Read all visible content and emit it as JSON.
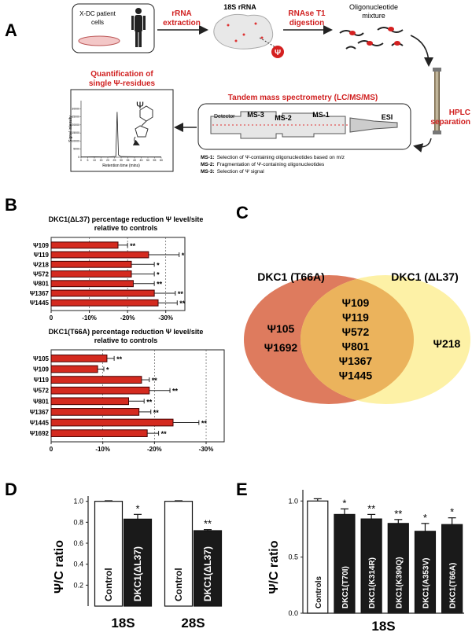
{
  "panel_labels": [
    "A",
    "B",
    "C",
    "D",
    "E"
  ],
  "workflow": {
    "patient_cells": [
      "X-DC patient",
      "cells"
    ],
    "step1": [
      "rRNA",
      "extraction"
    ],
    "rrna_label": "18S rRNA",
    "psi_marker": "Ψ",
    "step2": [
      "RNAse T1",
      "digestion"
    ],
    "oligo_label": [
      "Oligonucleotide",
      "mixture"
    ],
    "step3": [
      "HPLC",
      "separation"
    ],
    "ms_title": "Tandem mass spectrometry (LC/MS/MS)",
    "ms_parts": [
      "Detector",
      "MS-3",
      "MS-2",
      "MS-1",
      "ESI"
    ],
    "quant_title": [
      "Quantification of",
      "single Ψ-residues"
    ],
    "notes": [
      {
        "label": "MS-1:",
        "text": "Selection of Ψ-containing oligonucleotides based on m/z"
      },
      {
        "label": "MS-2:",
        "text": "Fragmentation of Ψ-containing oligonucleotides"
      },
      {
        "label": "MS-3:",
        "text": "Selection of Ψ signal"
      }
    ]
  },
  "venn": {
    "sets": [
      {
        "name": "DKC1 (T66A)",
        "color": "#de7b5e"
      },
      {
        "name": "DKC1 (ΔL37)",
        "color": "#fdf1a6"
      }
    ],
    "overlap_color": "#ebb35c",
    "left_only": [
      "Ψ105",
      "Ψ1692"
    ],
    "both": [
      "Ψ109",
      "Ψ119",
      "Ψ572",
      "Ψ801",
      "Ψ1367",
      "Ψ1445"
    ],
    "right_only": [
      "Ψ218"
    ]
  },
  "chart_data": [
    {
      "type": "hbar",
      "title": [
        "DKC1(ΔL37) percentage reduction Ψ level/site",
        "relative to controls"
      ],
      "categories": [
        "Ψ109",
        "Ψ119",
        "Ψ218",
        "Ψ572",
        "Ψ801",
        "Ψ1367",
        "Ψ1445"
      ],
      "values": [
        -17.5,
        -25.5,
        -21,
        -21,
        -21.5,
        -27,
        -28
      ],
      "errors": [
        2.5,
        8,
        6,
        6,
        5.5,
        5.5,
        5
      ],
      "annotations": [
        "**",
        "*",
        "*",
        "*",
        "**",
        "**",
        "**"
      ],
      "color": "#d42a1f",
      "xlim": [
        0,
        -35
      ],
      "xticks": [
        0,
        {
          "value": -10,
          "label": "-10%"
        },
        {
          "value": -20,
          "label": "-20%"
        },
        {
          "value": -30,
          "label": "-30%"
        }
      ],
      "grid": true
    },
    {
      "type": "hbar",
      "title": [
        "DKC1(T66A) percentage reduction Ψ level/site",
        "relative to controls"
      ],
      "categories": [
        "Ψ105",
        "Ψ109",
        "Ψ119",
        "Ψ572",
        "Ψ801",
        "Ψ1367",
        "Ψ1445",
        "Ψ1692"
      ],
      "values": [
        -10.8,
        -9,
        -17.5,
        -19,
        -15,
        -17,
        -23.6,
        -18.6
      ],
      "errors": [
        1.4,
        1.2,
        1.5,
        4,
        3,
        2.3,
        5,
        2.2
      ],
      "annotations": [
        "**",
        "*",
        "**",
        "**",
        "**",
        "**",
        "**",
        "**"
      ],
      "color": "#d42a1f",
      "xlim": [
        0,
        -33.5
      ],
      "xticks": [
        0,
        {
          "value": -10,
          "label": "-10%"
        },
        {
          "value": -20,
          "label": "-20%"
        },
        {
          "value": -30,
          "label": "-30%"
        }
      ],
      "grid": true
    },
    {
      "type": "bar",
      "y_axis_label": "Ψ/C ratio",
      "categories": [
        "18S",
        "28S"
      ],
      "series": [
        {
          "name": "Control",
          "color": "#ffffff",
          "values": [
            1.0,
            1.0
          ],
          "errors": [
            0.005,
            0.005
          ],
          "annotations": [
            null,
            null
          ]
        },
        {
          "name": "DKC1(ΔL37)",
          "color": "#1a1a1a",
          "values": [
            0.83,
            0.72
          ],
          "errors": [
            0.045,
            0.01
          ],
          "annotations": [
            "*",
            "**"
          ]
        }
      ],
      "ylim": [
        0,
        1.05
      ],
      "yticks": [
        0.2,
        0.4,
        0.6,
        0.8,
        {
          "value": 1,
          "label": "1.0"
        }
      ]
    },
    {
      "type": "bar",
      "y_axis_label": "Ψ/C ratio",
      "x_axis_label": "18S",
      "categories": [
        "Controls",
        "DKC1(T70I)",
        "DKC1(K314R)",
        "DKC1(K390Q)",
        "DKC1(A353V)",
        "DKC1(T66A)"
      ],
      "values": [
        1.0,
        0.88,
        0.84,
        0.8,
        0.73,
        0.79
      ],
      "errors": [
        0.02,
        0.05,
        0.04,
        0.035,
        0.07,
        0.06
      ],
      "annotations": [
        null,
        "*",
        "**",
        "**",
        "*",
        "*"
      ],
      "colors": [
        "#ffffff",
        "#1a1a1a",
        "#1a1a1a",
        "#1a1a1a",
        "#1a1a1a",
        "#1a1a1a"
      ],
      "ylim": [
        0,
        1.1
      ],
      "yticks": [
        {
          "value": 0,
          "label": "0.0"
        },
        0.5,
        {
          "value": 1,
          "label": "1.0"
        }
      ]
    },
    {
      "type": "line",
      "annotation": "Ψ",
      "x_axis_label": "Retention time (mins)",
      "y_axis_label": "Signal intensity",
      "x": [
        0,
        10,
        20,
        26,
        27,
        28,
        29,
        30,
        40,
        50,
        60
      ],
      "values": [
        200,
        300,
        200,
        500,
        28000,
        1500,
        800,
        400,
        300,
        200,
        150
      ],
      "color": "#222222",
      "xlim": [
        0,
        60
      ],
      "ylim": [
        0,
        35000
      ],
      "xticks": [
        0,
        5,
        10,
        15,
        20,
        25,
        30,
        35,
        40,
        45,
        50,
        55,
        60
      ],
      "yticks": [
        0,
        5000,
        10000,
        15000,
        20000,
        25000,
        30000
      ]
    }
  ]
}
